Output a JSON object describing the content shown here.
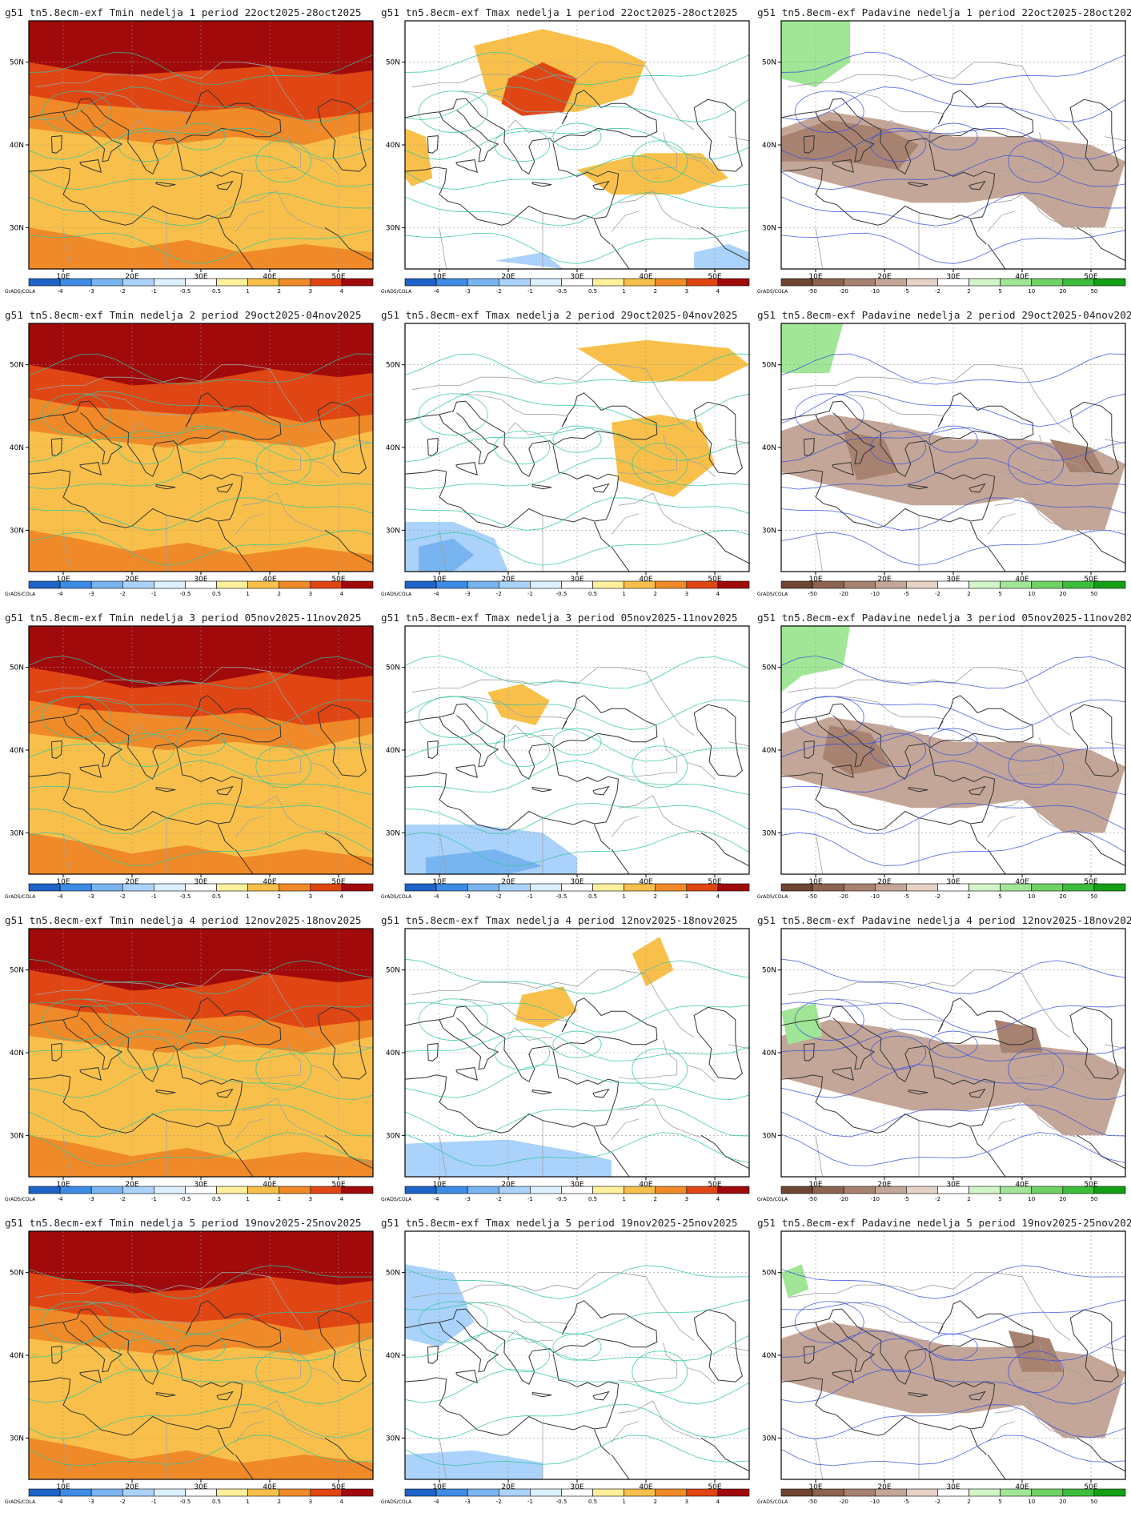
{
  "source": "g51",
  "model": "tn5.8ecm-exf",
  "week_word": "nedelja",
  "period_word": "period",
  "credit": "GrADS/COLA",
  "variables": [
    {
      "id": "tmin",
      "name": "Tmin"
    },
    {
      "id": "tmax",
      "name": "Tmax"
    },
    {
      "id": "precip",
      "name": "Padavine"
    }
  ],
  "weeks": [
    {
      "number": "1",
      "period": "22oct2025-28oct2025"
    },
    {
      "number": "2",
      "period": "29oct2025-04nov2025"
    },
    {
      "number": "3",
      "period": "05nov2025-11nov2025"
    },
    {
      "number": "4",
      "period": "12nov2025-18nov2025"
    },
    {
      "number": "5",
      "period": "19nov2025-25nov2025"
    }
  ],
  "map": {
    "lon_ticks": [
      "10E",
      "20E",
      "30E",
      "40E",
      "50E"
    ],
    "lat_ticks": [
      "50N",
      "40N",
      "30N"
    ],
    "lon_range": [
      5,
      55
    ],
    "lat_range": [
      25,
      55
    ]
  },
  "legends": {
    "temperature": {
      "labels": [
        "-4",
        "-3",
        "-2",
        "-1",
        "-0.5",
        "0.5",
        "1",
        "2",
        "3",
        "4"
      ],
      "colors": [
        "#1e64c8",
        "#3c8ce6",
        "#78b4f0",
        "#aad2fa",
        "#dcf0ff",
        "#ffffff",
        "#fff09c",
        "#f8c04a",
        "#f08a28",
        "#e04614",
        "#a00a0a"
      ]
    },
    "precipitation": {
      "labels": [
        "-50",
        "-20",
        "-10",
        "-5",
        "-2",
        "2",
        "5",
        "10",
        "20",
        "50"
      ],
      "colors": [
        "#6e4632",
        "#8c6450",
        "#a88270",
        "#c4a698",
        "#e6d2c6",
        "#ffffff",
        "#d2f5c8",
        "#a0e696",
        "#6ed264",
        "#3cbe3c",
        "#14a014"
      ]
    }
  },
  "field_colors": {
    "tmin_strong": "#a00a0a",
    "tmin_warm": "#e04614",
    "tmin_mid": "#f08a28",
    "tmin_base": "#f8c04a",
    "tmax_warm": "#f8c04a",
    "tmax_hot": "#e04614",
    "tmax_cold": "#aad2fa",
    "tmax_colder": "#78b4f0",
    "precip_dry": "#c4a698",
    "precip_drier": "#a88270",
    "precip_wet": "#a0e696",
    "contour_temp": "#2ec4a0",
    "contour_precip": "#3450e0",
    "coast": "#333333",
    "border": "#a0a0a0"
  }
}
